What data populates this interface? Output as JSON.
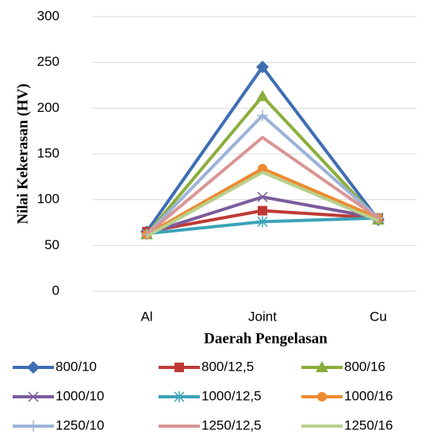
{
  "chart_data": {
    "type": "line",
    "y_label": "Nilai Kekerasan (HV)",
    "x_label": "Daerah Pengelasan",
    "categories": [
      "Al",
      "Joint",
      "Cu"
    ],
    "ylim": [
      0,
      300
    ],
    "yticks": [
      0,
      50,
      100,
      150,
      200,
      250,
      300
    ],
    "grid": true,
    "series": [
      {
        "name": "800/10",
        "color": "#3e6db3",
        "marker": "diamond",
        "values": [
          65,
          245,
          78
        ]
      },
      {
        "name": "800/12,5",
        "color": "#bf3a35",
        "marker": "square",
        "values": [
          65,
          88,
          80
        ]
      },
      {
        "name": "800/16",
        "color": "#8aae3b",
        "marker": "triangle",
        "values": [
          62,
          213,
          78
        ]
      },
      {
        "name": "1000/10",
        "color": "#7b5c9c",
        "marker": "x",
        "values": [
          63,
          103,
          80
        ]
      },
      {
        "name": "1000/12,5",
        "color": "#3ca2b8",
        "marker": "star",
        "values": [
          63,
          76,
          80
        ]
      },
      {
        "name": "1000/16",
        "color": "#ee8a2f",
        "marker": "circle",
        "values": [
          62,
          134,
          80
        ]
      },
      {
        "name": "1250/10",
        "color": "#9cb3d9",
        "marker": "plus",
        "values": [
          62,
          192,
          80
        ]
      },
      {
        "name": "1250/12,5",
        "color": "#d99594",
        "marker": "none",
        "values": [
          62,
          168,
          80
        ]
      },
      {
        "name": "1250/16",
        "color": "#b7d08c",
        "marker": "none",
        "values": [
          60,
          130,
          77
        ]
      }
    ]
  }
}
